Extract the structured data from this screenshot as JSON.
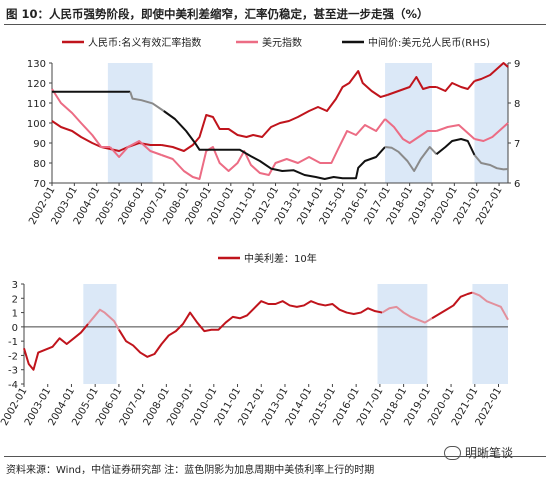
{
  "header": {
    "title": "图 10：人民币强势阶段，即使中美利差缩窄，汇率仍稳定，甚至进一步走强（%）"
  },
  "footer": {
    "source": "资料来源：Wind，中信证券研究部   注：蓝色阴影为加息周期中美债利率上行的时期",
    "watermark": "明晰笔谈"
  },
  "colors": {
    "rmb": "#c0141c",
    "usd": "#ec6c84",
    "mid": "#111111",
    "mid_faded": "#8a8a8a",
    "spread": "#c0141c",
    "spread_faded": "#e2909c",
    "shade": "#dbe8f7"
  },
  "chart_data": [
    {
      "type": "line",
      "legend": [
        "人民币:名义有效汇率指数",
        "美元指数",
        "中间价:美元兑人民币(RHS)"
      ],
      "shaded_periods": [
        [
          2004.5,
          2006.5
        ],
        [
          2016.9,
          2019.0
        ],
        [
          2020.9,
          2022.4
        ]
      ],
      "xlim": [
        2002.0,
        2022.4
      ],
      "x_tick_labels": [
        "2002-01",
        "2003-01",
        "2004-01",
        "2005-01",
        "2006-01",
        "2007-01",
        "2008-01",
        "2009-01",
        "2010-01",
        "2011-01",
        "2012-01",
        "2013-01",
        "2014-01",
        "2015-01",
        "2016-01",
        "2017-01",
        "2018-01",
        "2019-01",
        "2020-01",
        "2021-01",
        "2022-01"
      ],
      "ylim": [
        70,
        130
      ],
      "y_ticks": [
        70,
        80,
        90,
        100,
        110,
        120,
        130
      ],
      "y2lim": [
        6,
        9
      ],
      "y2_ticks": [
        6,
        7,
        8,
        9
      ],
      "series": [
        {
          "name": "人民币:名义有效汇率指数",
          "axis": "left",
          "points": [
            [
              2002.0,
              101
            ],
            [
              2002.4,
              98
            ],
            [
              2002.9,
              96
            ],
            [
              2003.3,
              93
            ],
            [
              2003.8,
              90
            ],
            [
              2004.2,
              88
            ],
            [
              2004.6,
              87
            ],
            [
              2005.0,
              86
            ],
            [
              2005.4,
              88
            ],
            [
              2005.9,
              90
            ],
            [
              2006.4,
              89
            ],
            [
              2006.9,
              89
            ],
            [
              2007.4,
              88
            ],
            [
              2007.9,
              86
            ],
            [
              2008.3,
              89
            ],
            [
              2008.6,
              93
            ],
            [
              2008.9,
              104
            ],
            [
              2009.2,
              103
            ],
            [
              2009.5,
              97
            ],
            [
              2009.9,
              97
            ],
            [
              2010.3,
              94
            ],
            [
              2010.7,
              93
            ],
            [
              2011.0,
              94
            ],
            [
              2011.4,
              93
            ],
            [
              2011.8,
              98
            ],
            [
              2012.2,
              100
            ],
            [
              2012.6,
              101
            ],
            [
              2013.0,
              103
            ],
            [
              2013.5,
              106
            ],
            [
              2013.9,
              108
            ],
            [
              2014.3,
              106
            ],
            [
              2014.7,
              112
            ],
            [
              2015.0,
              118
            ],
            [
              2015.3,
              120
            ],
            [
              2015.7,
              126
            ],
            [
              2015.9,
              120
            ],
            [
              2016.3,
              116
            ],
            [
              2016.7,
              113
            ],
            [
              2017.0,
              114
            ],
            [
              2017.5,
              116
            ],
            [
              2018.0,
              118
            ],
            [
              2018.3,
              123
            ],
            [
              2018.6,
              117
            ],
            [
              2018.9,
              118
            ],
            [
              2019.2,
              118
            ],
            [
              2019.6,
              116
            ],
            [
              2019.9,
              120
            ],
            [
              2020.3,
              118
            ],
            [
              2020.6,
              117
            ],
            [
              2020.9,
              121
            ],
            [
              2021.2,
              122
            ],
            [
              2021.6,
              124
            ],
            [
              2021.9,
              127
            ],
            [
              2022.2,
              130
            ],
            [
              2022.4,
              128
            ]
          ]
        },
        {
          "name": "美元指数",
          "axis": "left",
          "points": [
            [
              2002.0,
              117
            ],
            [
              2002.4,
              110
            ],
            [
              2002.9,
              105
            ],
            [
              2003.3,
              100
            ],
            [
              2003.8,
              94
            ],
            [
              2004.2,
              88
            ],
            [
              2004.6,
              88
            ],
            [
              2005.0,
              83
            ],
            [
              2005.4,
              88
            ],
            [
              2005.9,
              91
            ],
            [
              2006.4,
              86
            ],
            [
              2006.9,
              84
            ],
            [
              2007.4,
              82
            ],
            [
              2007.9,
              76
            ],
            [
              2008.3,
              73
            ],
            [
              2008.6,
              72
            ],
            [
              2008.9,
              86
            ],
            [
              2009.2,
              88
            ],
            [
              2009.5,
              80
            ],
            [
              2009.9,
              76
            ],
            [
              2010.3,
              80
            ],
            [
              2010.6,
              86
            ],
            [
              2010.9,
              79
            ],
            [
              2011.3,
              75
            ],
            [
              2011.7,
              74
            ],
            [
              2012.0,
              80
            ],
            [
              2012.5,
              82
            ],
            [
              2013.0,
              80
            ],
            [
              2013.5,
              83
            ],
            [
              2014.0,
              80
            ],
            [
              2014.5,
              80
            ],
            [
              2014.8,
              87
            ],
            [
              2015.2,
              96
            ],
            [
              2015.6,
              94
            ],
            [
              2016.0,
              99
            ],
            [
              2016.5,
              96
            ],
            [
              2016.9,
              102
            ],
            [
              2017.3,
              98
            ],
            [
              2017.7,
              92
            ],
            [
              2018.0,
              90
            ],
            [
              2018.4,
              93
            ],
            [
              2018.8,
              96
            ],
            [
              2019.2,
              96
            ],
            [
              2019.7,
              98
            ],
            [
              2020.2,
              99
            ],
            [
              2020.5,
              96
            ],
            [
              2020.9,
              92
            ],
            [
              2021.3,
              91
            ],
            [
              2021.7,
              93
            ],
            [
              2022.0,
              96
            ],
            [
              2022.4,
              100
            ]
          ]
        },
        {
          "name": "中间价:美元兑人民币(RHS)",
          "axis": "right",
          "points": [
            [
              2002.0,
              8.28
            ],
            [
              2005.5,
              8.28
            ],
            [
              2005.6,
              8.11
            ],
            [
              2006.0,
              8.07
            ],
            [
              2006.5,
              7.99
            ],
            [
              2007.0,
              7.8
            ],
            [
              2007.5,
              7.6
            ],
            [
              2008.0,
              7.3
            ],
            [
              2008.4,
              7.0
            ],
            [
              2008.6,
              6.83
            ],
            [
              2009.5,
              6.83
            ],
            [
              2010.4,
              6.83
            ],
            [
              2010.9,
              6.67
            ],
            [
              2011.3,
              6.55
            ],
            [
              2011.8,
              6.36
            ],
            [
              2012.3,
              6.3
            ],
            [
              2012.8,
              6.32
            ],
            [
              2013.3,
              6.2
            ],
            [
              2013.8,
              6.15
            ],
            [
              2014.2,
              6.1
            ],
            [
              2014.6,
              6.15
            ],
            [
              2015.0,
              6.12
            ],
            [
              2015.6,
              6.12
            ],
            [
              2015.7,
              6.38
            ],
            [
              2016.0,
              6.55
            ],
            [
              2016.5,
              6.65
            ],
            [
              2016.9,
              6.9
            ],
            [
              2017.2,
              6.88
            ],
            [
              2017.5,
              6.78
            ],
            [
              2017.9,
              6.55
            ],
            [
              2018.2,
              6.3
            ],
            [
              2018.5,
              6.6
            ],
            [
              2018.9,
              6.9
            ],
            [
              2019.2,
              6.72
            ],
            [
              2019.6,
              6.9
            ],
            [
              2019.9,
              7.05
            ],
            [
              2020.3,
              7.1
            ],
            [
              2020.6,
              7.05
            ],
            [
              2020.9,
              6.7
            ],
            [
              2021.2,
              6.5
            ],
            [
              2021.6,
              6.45
            ],
            [
              2021.9,
              6.37
            ],
            [
              2022.2,
              6.34
            ],
            [
              2022.4,
              6.35
            ]
          ]
        }
      ]
    },
    {
      "type": "line",
      "legend": [
        "中美利差：10年"
      ],
      "shaded_periods": [
        [
          2004.5,
          2005.9
        ],
        [
          2016.9,
          2019.0
        ],
        [
          2020.9,
          2022.4
        ]
      ],
      "xlim": [
        2002.0,
        2022.4
      ],
      "x_tick_labels": [
        "2002-01",
        "2003-01",
        "2004-01",
        "2005-01",
        "2006-01",
        "2007-01",
        "2008-01",
        "2009-01",
        "2010-01",
        "2011-01",
        "2012-01",
        "2013-01",
        "2014-01",
        "2015-01",
        "2016-01",
        "2017-01",
        "2018-01",
        "2019-01",
        "2020-01",
        "2021-01",
        "2022-01"
      ],
      "ylim": [
        -4,
        3
      ],
      "y_ticks": [
        -4,
        -3,
        -2,
        -1,
        0,
        1,
        2,
        3
      ],
      "series": [
        {
          "name": "中美利差：10年",
          "points": [
            [
              2002.0,
              -1.5
            ],
            [
              2002.2,
              -2.6
            ],
            [
              2002.4,
              -3.0
            ],
            [
              2002.6,
              -1.8
            ],
            [
              2002.9,
              -1.6
            ],
            [
              2003.2,
              -1.4
            ],
            [
              2003.5,
              -0.8
            ],
            [
              2003.8,
              -1.2
            ],
            [
              2004.1,
              -0.8
            ],
            [
              2004.4,
              -0.4
            ],
            [
              2004.7,
              0.2
            ],
            [
              2005.0,
              0.8
            ],
            [
              2005.2,
              1.2
            ],
            [
              2005.4,
              1.0
            ],
            [
              2005.6,
              0.7
            ],
            [
              2005.8,
              0.4
            ],
            [
              2006.0,
              -0.2
            ],
            [
              2006.3,
              -1.0
            ],
            [
              2006.6,
              -1.3
            ],
            [
              2006.9,
              -1.8
            ],
            [
              2007.2,
              -2.1
            ],
            [
              2007.5,
              -1.9
            ],
            [
              2007.8,
              -1.2
            ],
            [
              2008.1,
              -0.6
            ],
            [
              2008.4,
              -0.3
            ],
            [
              2008.7,
              0.2
            ],
            [
              2009.0,
              1.0
            ],
            [
              2009.3,
              0.3
            ],
            [
              2009.6,
              -0.3
            ],
            [
              2009.9,
              -0.2
            ],
            [
              2010.2,
              -0.2
            ],
            [
              2010.5,
              0.3
            ],
            [
              2010.8,
              0.7
            ],
            [
              2011.1,
              0.6
            ],
            [
              2011.4,
              0.8
            ],
            [
              2011.7,
              1.3
            ],
            [
              2012.0,
              1.8
            ],
            [
              2012.3,
              1.6
            ],
            [
              2012.6,
              1.6
            ],
            [
              2012.9,
              1.8
            ],
            [
              2013.2,
              1.5
            ],
            [
              2013.5,
              1.4
            ],
            [
              2013.8,
              1.5
            ],
            [
              2014.1,
              1.8
            ],
            [
              2014.4,
              1.6
            ],
            [
              2014.7,
              1.5
            ],
            [
              2015.0,
              1.6
            ],
            [
              2015.3,
              1.2
            ],
            [
              2015.6,
              1.0
            ],
            [
              2015.9,
              0.9
            ],
            [
              2016.2,
              1.0
            ],
            [
              2016.5,
              1.3
            ],
            [
              2016.8,
              1.1
            ],
            [
              2017.1,
              1.0
            ],
            [
              2017.4,
              1.3
            ],
            [
              2017.7,
              1.4
            ],
            [
              2018.0,
              1.0
            ],
            [
              2018.3,
              0.7
            ],
            [
              2018.6,
              0.5
            ],
            [
              2018.9,
              0.3
            ],
            [
              2019.2,
              0.6
            ],
            [
              2019.5,
              0.9
            ],
            [
              2019.8,
              1.2
            ],
            [
              2020.1,
              1.5
            ],
            [
              2020.4,
              2.1
            ],
            [
              2020.7,
              2.3
            ],
            [
              2020.9,
              2.4
            ],
            [
              2021.2,
              2.2
            ],
            [
              2021.5,
              1.8
            ],
            [
              2021.8,
              1.6
            ],
            [
              2022.1,
              1.4
            ],
            [
              2022.3,
              0.8
            ],
            [
              2022.4,
              0.5
            ]
          ]
        }
      ]
    }
  ]
}
